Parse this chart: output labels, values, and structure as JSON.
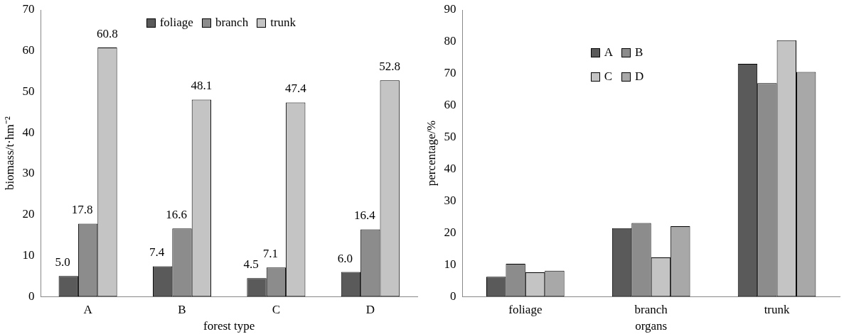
{
  "chart_data": [
    {
      "type": "bar",
      "xlabel": "forest type",
      "ylabel": "biomass/t·hm⁻²",
      "categories": [
        "A",
        "B",
        "C",
        "D"
      ],
      "series": [
        {
          "name": "foliage",
          "color": "#5a5a5a",
          "values": [
            5.0,
            7.4,
            4.5,
            6.0
          ],
          "value_labels": [
            "5.0",
            "7.4",
            "4.5",
            "6.0"
          ]
        },
        {
          "name": "branch",
          "color": "#8c8c8c",
          "values": [
            17.8,
            16.6,
            7.1,
            16.4
          ],
          "value_labels": [
            "17.8",
            "16.6",
            "7.1",
            "16.4"
          ]
        },
        {
          "name": "trunk",
          "color": "#c4c4c4",
          "values": [
            60.8,
            48.1,
            47.4,
            52.8
          ],
          "value_labels": [
            "60.8",
            "48.1",
            "47.4",
            "52.8"
          ]
        }
      ],
      "ylim": [
        0,
        70
      ],
      "yticks": [
        0,
        10,
        20,
        30,
        40,
        50,
        60,
        70
      ],
      "grid": false,
      "legend": "top"
    },
    {
      "type": "bar",
      "xlabel": "organs",
      "ylabel": "percentage/%",
      "categories": [
        "foliage",
        "branch",
        "trunk"
      ],
      "series": [
        {
          "name": "A",
          "color": "#5a5a5a",
          "values": [
            6.2,
            21.5,
            73.1
          ]
        },
        {
          "name": "B",
          "color": "#8c8c8c",
          "values": [
            10.3,
            23.1,
            67.0
          ]
        },
        {
          "name": "C",
          "color": "#c4c4c4",
          "values": [
            7.6,
            12.3,
            80.5
          ]
        },
        {
          "name": "D",
          "color": "#a8a8a8",
          "values": [
            8.1,
            22.1,
            70.5
          ]
        }
      ],
      "ylim": [
        0,
        90
      ],
      "yticks": [
        0,
        10,
        20,
        30,
        40,
        50,
        60,
        70,
        80,
        90
      ],
      "grid": false,
      "legend": "top left"
    }
  ]
}
